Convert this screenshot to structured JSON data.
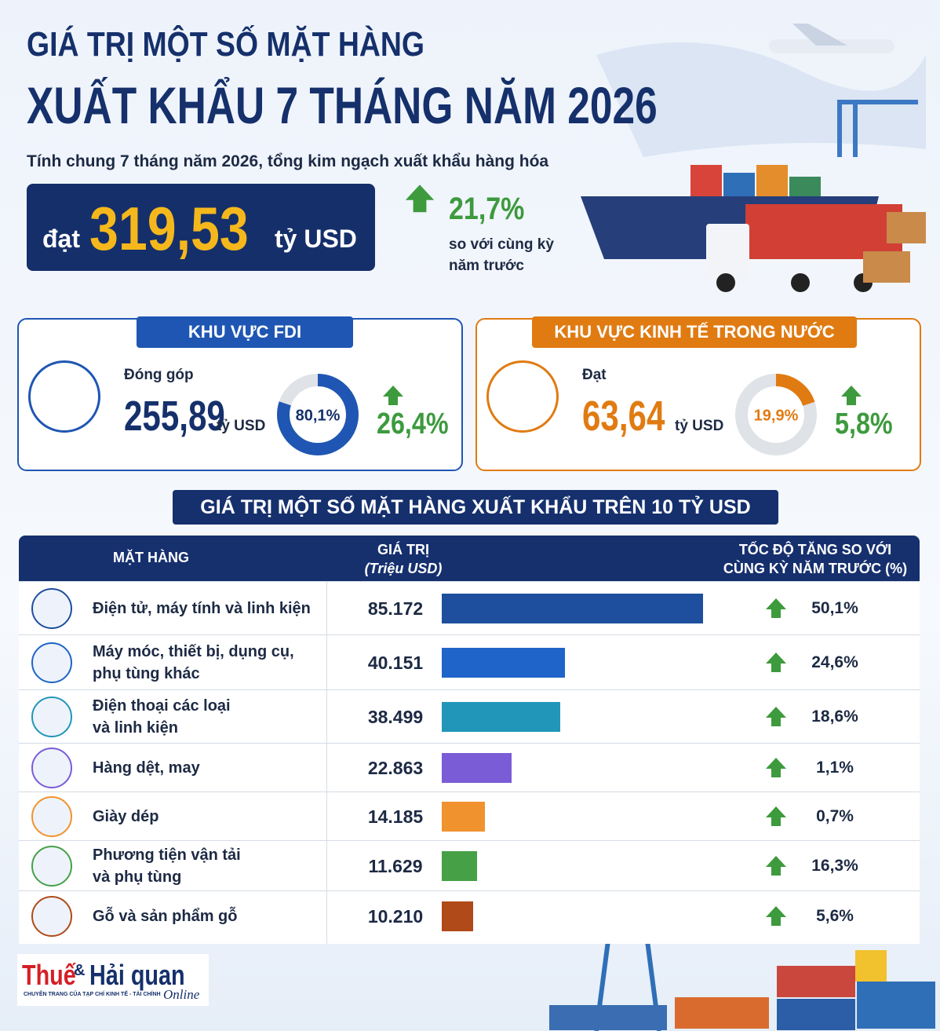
{
  "header": {
    "title_line1": "GIÁ TRỊ MỘT SỐ MẶT HÀNG",
    "title_line2": "XUẤT KHẨU 7 THÁNG NĂM 2026"
  },
  "summary": {
    "intro": "Tính chung 7 tháng năm 2026, tổng kim ngạch xuất khẩu hàng hóa",
    "prefix": "đạt",
    "amount": "319,53",
    "unit": "tỷ USD",
    "growth": "21,7%",
    "growth_note": [
      "so với cùng kỳ",
      "năm trước"
    ]
  },
  "fdi": {
    "title": "KHU VỰC FDI",
    "label": "Đóng góp",
    "amount": "255,89",
    "unit": "tỷ USD",
    "share": {
      "value": 80.1,
      "label": "80,1%"
    },
    "growth": "26,4%",
    "color": "#1f56b3"
  },
  "domestic": {
    "title": "KHU VỰC KINH TẾ TRONG NƯỚC",
    "label": "Đạt",
    "amount": "63,64",
    "unit": "tỷ USD",
    "share": {
      "value": 19.9,
      "label": "19,9%"
    },
    "growth": "5,8%",
    "color": "#e07b12"
  },
  "table": {
    "title": "GIÁ TRỊ MỘT SỐ MẶT HÀNG XUẤT KHẨU TRÊN 10 TỶ USD",
    "headers": {
      "item": "MẶT HÀNG",
      "value": "GIÁ TRỊ",
      "value_unit": "(Triệu USD)",
      "growth": [
        "TỐC ĐỘ TĂNG SO VỚI",
        "CÙNG KỲ NĂM TRƯỚC (%)"
      ]
    },
    "items": [
      [
        "Điện tử, máy tính và linh kiện"
      ],
      [
        "Máy móc, thiết bị, dụng cụ,",
        "phụ tùng khác"
      ],
      [
        "Điện thoại các loại",
        "và linh kiện"
      ],
      [
        "Hàng dệt, may"
      ],
      [
        "Giày dép"
      ],
      [
        "Phương tiện vận tải",
        "và phụ tùng"
      ],
      [
        "Gỗ và sản phẩm gỗ"
      ]
    ],
    "values": [
      85172,
      40151,
      38499,
      22863,
      14185,
      11629,
      10210
    ],
    "value_labels": [
      "85.172",
      "40.151",
      "38.499",
      "22.863",
      "14.185",
      "11.629",
      "10.210"
    ],
    "growth": [
      "50,1%",
      "24,6%",
      "18,6%",
      "1,1%",
      "0,7%",
      "16,3%",
      "5,6%"
    ],
    "colors": [
      "#1d4f9e",
      "#1f64c8",
      "#2196b8",
      "#7a5cd6",
      "#f0922e",
      "#46a046",
      "#b04a18"
    ]
  },
  "logo": {
    "brand1": "Thuế",
    "amp": "&",
    "brand2": "Hải quan",
    "tagline": "CHUYÊN TRANG CỦA TẠP CHÍ KINH TẾ - TÀI CHÍNH",
    "suffix": "Online"
  }
}
